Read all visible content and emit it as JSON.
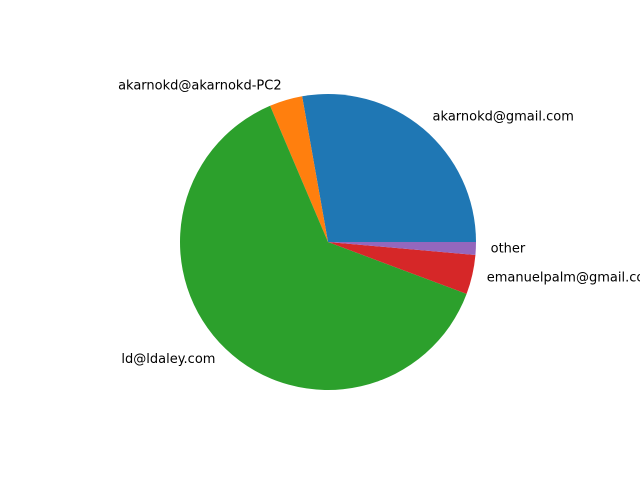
{
  "chart_data": {
    "type": "pie",
    "title": "",
    "slices": [
      {
        "label": "akarnokd@gmail.com",
        "value": 27.8,
        "color": "#1f77b4"
      },
      {
        "label": "akarnokd@akarnokd-PC2",
        "value": 3.6,
        "color": "#ff7f0e"
      },
      {
        "label": "ld@ldaley.com",
        "value": 62.9,
        "color": "#2ca02c"
      },
      {
        "label": "emanuelpalm@gmail.com",
        "value": 4.3,
        "color": "#d62728"
      },
      {
        "label": "other",
        "value": 1.4,
        "color": "#9467bd"
      }
    ],
    "start_angle_deg": 0,
    "direction": "counterclockwise",
    "legend": "none"
  }
}
